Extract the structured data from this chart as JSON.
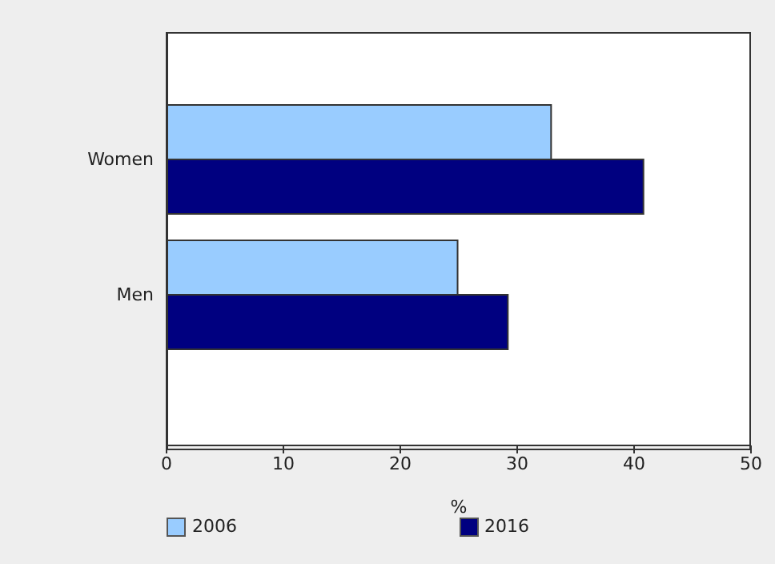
{
  "chart_data": {
    "type": "bar",
    "orientation": "horizontal",
    "categories": [
      "Women",
      "Men"
    ],
    "series": [
      {
        "name": "2006",
        "color": "#99ccff",
        "values": [
          32.9,
          24.9
        ]
      },
      {
        "name": "2016",
        "color": "#000080",
        "values": [
          40.8,
          29.2
        ]
      }
    ],
    "xlabel": "%",
    "xlim": [
      0,
      50
    ],
    "xticks": [
      0,
      10,
      20,
      30,
      40,
      50
    ],
    "grid": false,
    "legend": "bottom"
  }
}
